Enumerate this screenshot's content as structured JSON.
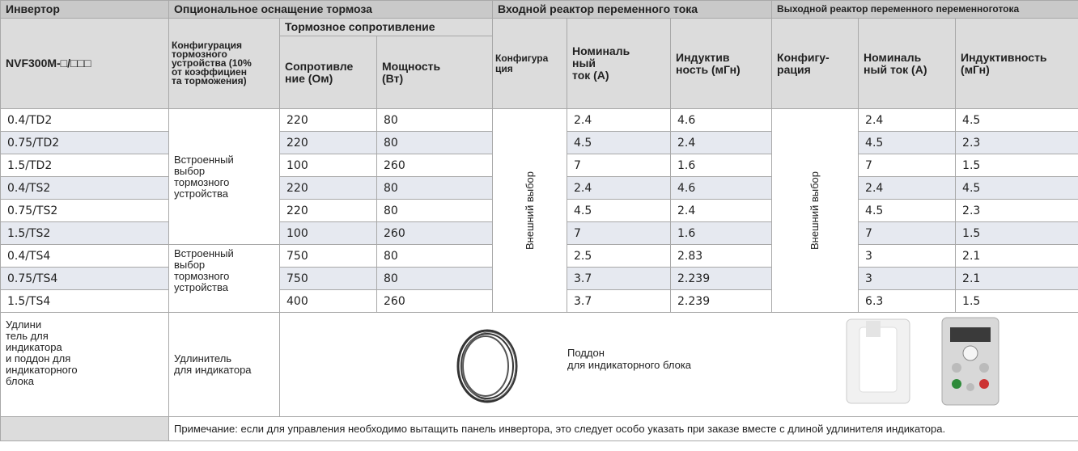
{
  "header": {
    "inverter": "Инвертор",
    "model": "NVF300M-□/□□□",
    "brake_group": "Опциональное оснащение тормоза",
    "brake_config": "Конфигурация\nтормозного\nустройства (10%\nот коэффициен\nта торможения)",
    "brake_resistance": "Тормозное сопротивление",
    "resistance": "Сопротивле\nние (Ом)",
    "power": "Мощность\n(Вт)",
    "input_group": "Входной реактор переменного тока",
    "input_config": "Конфигура\nция",
    "input_current": "Номиналь\nный\nток (А)",
    "input_inductance": "Индуктив\nность (мГн)",
    "output_group": "Выходной реактор переменного переменноготока",
    "output_config": "Конфигу-\nрация",
    "output_current": "Номиналь\nный ток (А)",
    "output_inductance": "Индуктивность\n(мГн)"
  },
  "merged": {
    "builtin_1": "Встроенный\nвыбор\nтормозного\nустройства",
    "builtin_2": "Встроенный\nвыбор\nтормозного\nустройства",
    "input_external": "Внешний выбор",
    "output_external": "Внешний выбор"
  },
  "rows": [
    [
      "0.4/TD2",
      220,
      80,
      2.4,
      4.6,
      2.4,
      4.5
    ],
    [
      "0.75/TD2",
      220,
      80,
      4.5,
      2.4,
      4.5,
      2.3
    ],
    [
      "1.5/TD2",
      100,
      260,
      7,
      1.6,
      7,
      1.5
    ],
    [
      "0.4/TS2",
      220,
      80,
      2.4,
      4.6,
      2.4,
      4.5
    ],
    [
      "0.75/TS2",
      220,
      80,
      4.5,
      2.4,
      4.5,
      2.3
    ],
    [
      "1.5/TS2",
      100,
      260,
      7,
      1.6,
      7,
      1.5
    ],
    [
      "0.4/TS4",
      750,
      80,
      2.5,
      2.83,
      3,
      2.1
    ],
    [
      "0.75/TS4",
      750,
      80,
      3.7,
      2.239,
      3,
      2.1
    ],
    [
      "1.5/TS4",
      400,
      260,
      3.7,
      2.239,
      6.3,
      1.5
    ]
  ],
  "accessories": {
    "label": "Удлини\nтель для\nиндикатора\nи поддон для\nиндикаторного\nблока",
    "cable": "Удлинитель\nдля индикатора",
    "tray": "Поддон\nдля индикаторного блока"
  },
  "note": "Примечание: если для управления необходимо вытащить панель инвертора, это следует особо указать при заказе вместе с длиной удлинителя индикатора."
}
